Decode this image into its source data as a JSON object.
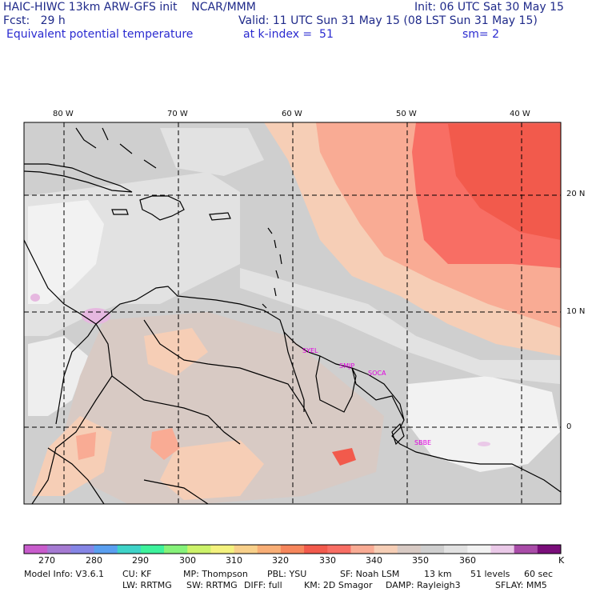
{
  "header": {
    "line1_left": "HAIC-HIWC 13km ARW-GFS init    NCAR/MMM",
    "line1_right": "Init: 06 UTC Sat 30 May 15",
    "fcst": "Fcst:   29 h",
    "valid": "Valid: 11 UTC Sun 31 May 15 (08 LST Sun 31 May 15)",
    "field": "Equivalent potential temperature",
    "level": "at k-index =  51",
    "smoothing": "sm= 2"
  },
  "map": {
    "lon_labels": [
      "80 W",
      "70 W",
      "60 W",
      "50 W",
      "40 W"
    ],
    "lat_labels": [
      "20 N",
      "10 N",
      "0"
    ],
    "station_labels": [
      "SYEL",
      "SMJP",
      "SOCA",
      "SBBE"
    ],
    "station_color": "#e000e0",
    "boundary_color": "#000000"
  },
  "colorbar": {
    "tick_labels": [
      "270",
      "280",
      "290",
      "300",
      "310",
      "320",
      "330",
      "340",
      "350",
      "360"
    ],
    "unit": "K",
    "colors": [
      "#c85ccc",
      "#a57ad2",
      "#8585e5",
      "#5a9ff0",
      "#3fd3c8",
      "#3ef29c",
      "#86f27a",
      "#ccf26a",
      "#f4f27e",
      "#f8d08a",
      "#f8ae76",
      "#f6865c",
      "#f25a4c",
      "#f86e64",
      "#f9ab94",
      "#f6ceb6",
      "#d8cac4",
      "#cfcfcf",
      "#e2e2e2",
      "#f2f2f2",
      "#eac9e8",
      "#a94ca8",
      "#7a0e7a"
    ]
  },
  "model_info": {
    "line1": [
      "Model Info: V3.6.1",
      "CU: KF",
      "MP: Thompson",
      "PBL: YSU",
      "SF: Noah LSM",
      "13 km",
      "51 levels",
      "60 sec"
    ],
    "line2": [
      "LW: RRTMG",
      "SW: RRTMG",
      "DIFF: full",
      "KM: 2D Smagor",
      "DAMP: Rayleigh3",
      "SFLAY: MM5"
    ]
  }
}
